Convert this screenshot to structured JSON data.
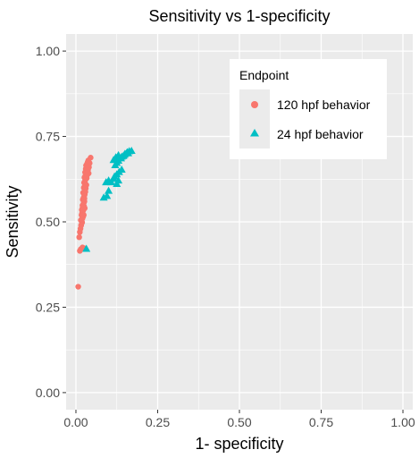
{
  "chart_data": {
    "type": "scatter",
    "title": "Sensitivity vs 1-specificity",
    "xlabel": "1- specificity",
    "ylabel": "Sensitivity",
    "xlim": [
      -0.03,
      1.03
    ],
    "ylim": [
      -0.05,
      1.05
    ],
    "x_ticks": [
      "0.00",
      "0.25",
      "0.50",
      "0.75",
      "1.00"
    ],
    "y_ticks": [
      "0.00",
      "0.25",
      "0.50",
      "0.75",
      "1.00"
    ],
    "grid": true,
    "legend": {
      "title": "Endpoint",
      "position": "top-right"
    },
    "series": [
      {
        "name": "120 hpf behavior",
        "color": "#F8766D",
        "marker": "circle",
        "points": [
          [
            0.007,
            0.31
          ],
          [
            0.012,
            0.415
          ],
          [
            0.015,
            0.42
          ],
          [
            0.02,
            0.425
          ],
          [
            0.025,
            0.423
          ],
          [
            0.01,
            0.455
          ],
          [
            0.012,
            0.47
          ],
          [
            0.014,
            0.48
          ],
          [
            0.016,
            0.49
          ],
          [
            0.018,
            0.5
          ],
          [
            0.015,
            0.505
          ],
          [
            0.02,
            0.51
          ],
          [
            0.022,
            0.515
          ],
          [
            0.017,
            0.52
          ],
          [
            0.019,
            0.525
          ],
          [
            0.021,
            0.53
          ],
          [
            0.023,
            0.535
          ],
          [
            0.02,
            0.54
          ],
          [
            0.025,
            0.545
          ],
          [
            0.022,
            0.55
          ],
          [
            0.024,
            0.555
          ],
          [
            0.026,
            0.56
          ],
          [
            0.021,
            0.565
          ],
          [
            0.023,
            0.57
          ],
          [
            0.025,
            0.575
          ],
          [
            0.027,
            0.58
          ],
          [
            0.022,
            0.585
          ],
          [
            0.026,
            0.59
          ],
          [
            0.028,
            0.595
          ],
          [
            0.024,
            0.6
          ],
          [
            0.027,
            0.605
          ],
          [
            0.029,
            0.61
          ],
          [
            0.025,
            0.615
          ],
          [
            0.028,
            0.62
          ],
          [
            0.03,
            0.625
          ],
          [
            0.026,
            0.63
          ],
          [
            0.029,
            0.635
          ],
          [
            0.031,
            0.64
          ],
          [
            0.028,
            0.645
          ],
          [
            0.032,
            0.65
          ],
          [
            0.03,
            0.655
          ],
          [
            0.033,
            0.66
          ],
          [
            0.031,
            0.665
          ],
          [
            0.034,
            0.67
          ],
          [
            0.036,
            0.675
          ],
          [
            0.038,
            0.68
          ],
          [
            0.035,
            0.662
          ],
          [
            0.037,
            0.652
          ],
          [
            0.039,
            0.642
          ],
          [
            0.04,
            0.66
          ],
          [
            0.042,
            0.672
          ],
          [
            0.045,
            0.688
          ],
          [
            0.033,
            0.628
          ],
          [
            0.035,
            0.638
          ],
          [
            0.03,
            0.598
          ],
          [
            0.032,
            0.608
          ],
          [
            0.018,
            0.535
          ],
          [
            0.02,
            0.548
          ],
          [
            0.026,
            0.568
          ],
          [
            0.029,
            0.588
          ],
          [
            0.016,
            0.49
          ],
          [
            0.019,
            0.498
          ],
          [
            0.024,
            0.52
          ],
          [
            0.027,
            0.54
          ],
          [
            0.036,
            0.645
          ]
        ]
      },
      {
        "name": "24 hpf behavior",
        "color": "#00BFC4",
        "marker": "triangle",
        "points": [
          [
            0.032,
            0.42
          ],
          [
            0.085,
            0.57
          ],
          [
            0.095,
            0.575
          ],
          [
            0.1,
            0.59
          ],
          [
            0.092,
            0.615
          ],
          [
            0.1,
            0.62
          ],
          [
            0.108,
            0.615
          ],
          [
            0.115,
            0.625
          ],
          [
            0.118,
            0.632
          ],
          [
            0.125,
            0.638
          ],
          [
            0.132,
            0.645
          ],
          [
            0.14,
            0.652
          ],
          [
            0.125,
            0.61
          ],
          [
            0.13,
            0.62
          ],
          [
            0.12,
            0.665
          ],
          [
            0.125,
            0.672
          ],
          [
            0.13,
            0.678
          ],
          [
            0.138,
            0.685
          ],
          [
            0.145,
            0.692
          ],
          [
            0.15,
            0.698
          ],
          [
            0.157,
            0.703
          ],
          [
            0.163,
            0.706
          ],
          [
            0.17,
            0.707
          ],
          [
            0.14,
            0.69
          ],
          [
            0.148,
            0.695
          ],
          [
            0.155,
            0.7
          ],
          [
            0.115,
            0.68
          ],
          [
            0.122,
            0.688
          ],
          [
            0.13,
            0.694
          ],
          [
            0.16,
            0.7
          ]
        ]
      }
    ]
  }
}
